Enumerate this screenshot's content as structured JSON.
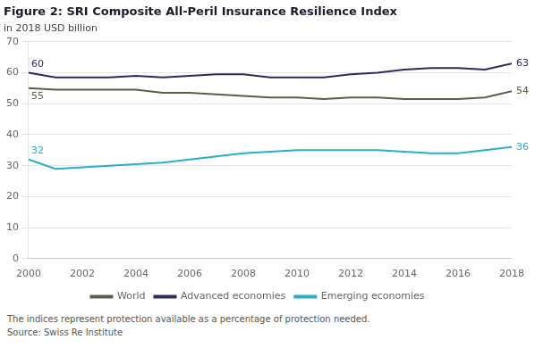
{
  "chart_data": {
    "type": "line",
    "title": "Figure 2: SRI Composite All-Peril Insurance Resilience Index",
    "subtitle": "in 2018 USD billion",
    "x": [
      2000,
      2001,
      2002,
      2003,
      2004,
      2005,
      2006,
      2007,
      2008,
      2009,
      2010,
      2011,
      2012,
      2013,
      2014,
      2015,
      2016,
      2017,
      2018
    ],
    "series": [
      {
        "name": "World",
        "color": "#5c5c4a",
        "values": [
          55,
          54.5,
          54.5,
          54.5,
          54.5,
          53.5,
          53.5,
          53.0,
          52.5,
          52.0,
          52.0,
          51.5,
          52.0,
          52.0,
          51.5,
          51.5,
          51.5,
          52.0,
          54
        ]
      },
      {
        "name": "Advanced economies",
        "color": "#2b2b5e",
        "values": [
          60,
          58.5,
          58.5,
          58.5,
          59.0,
          58.5,
          59.0,
          59.5,
          59.5,
          58.5,
          58.5,
          58.5,
          59.5,
          60.0,
          61.0,
          61.5,
          61.5,
          61.0,
          63
        ]
      },
      {
        "name": "Emerging economies",
        "color": "#2aadcc",
        "values": [
          32,
          29.0,
          29.5,
          30.0,
          30.5,
          31.0,
          32.0,
          33.0,
          34.0,
          34.5,
          35.0,
          35.0,
          35.0,
          35.0,
          34.5,
          34.0,
          34.0,
          35.0,
          36
        ]
      }
    ],
    "xlim": [
      2000,
      2018
    ],
    "xticks": [
      2000,
      2002,
      2004,
      2006,
      2008,
      2010,
      2012,
      2014,
      2016,
      2018
    ],
    "ylim": [
      0,
      70
    ],
    "yticks": [
      0,
      10,
      20,
      30,
      40,
      50,
      60,
      70
    ],
    "grid": true,
    "legend": "bottom",
    "annotations": [
      {
        "text": "60",
        "x": 2000,
        "y": 60,
        "color": "#2b2b5e",
        "position": "above"
      },
      {
        "text": "55",
        "x": 2000,
        "y": 55,
        "color": "#5c5c4a",
        "position": "below"
      },
      {
        "text": "32",
        "x": 2000,
        "y": 32,
        "color": "#2aadcc",
        "position": "above"
      },
      {
        "text": "63",
        "x": 2018,
        "y": 63,
        "color": "#2b2b5e",
        "position": "right"
      },
      {
        "text": "54",
        "x": 2018,
        "y": 54,
        "color": "#5c5c4a",
        "position": "right"
      },
      {
        "text": "36",
        "x": 2018,
        "y": 36,
        "color": "#2aadcc",
        "position": "right"
      }
    ],
    "footer": [
      "The indices represent protection available as a percentage of protection needed.",
      "Source: Swiss Re Institute"
    ]
  }
}
